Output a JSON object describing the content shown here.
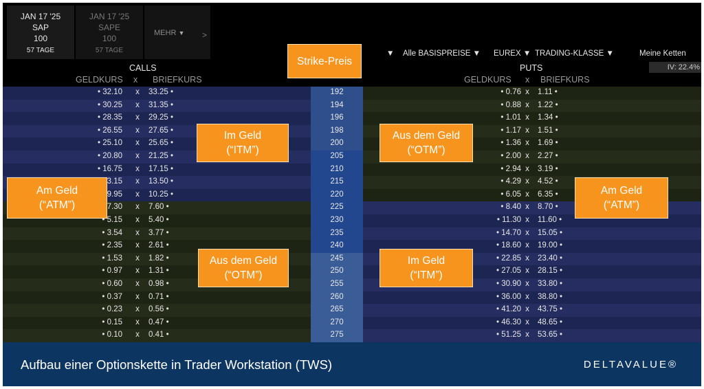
{
  "tabs": [
    {
      "date": "JAN 17 '25",
      "symbol": "SAP",
      "multiplier": "100",
      "days": "57 TAGE"
    },
    {
      "date": "JAN 17 '25",
      "symbol": "SAPE",
      "multiplier": "100",
      "days": "57 TAGE"
    }
  ],
  "more_label": "MEHR",
  "toolbar": {
    "underlyings": "Alle BASISPREISE",
    "exchange": "EUREX",
    "trading_class": "TRADING-KLASSE",
    "my_chains": "Meine Ketten",
    "iv": "IV: 22.4%"
  },
  "calls_label": "CALLS",
  "puts_label": "PUTS",
  "bid_label": "GELDKURS",
  "x_label": "x",
  "ask_label": "BRIEFKURS",
  "strike_label": "Strike-Preis",
  "rows": [
    {
      "c_bid": "32.10",
      "c_ask": "33.25",
      "strike": "192",
      "p_bid": "0.76",
      "p_ask": "1.11"
    },
    {
      "c_bid": "30.25",
      "c_ask": "31.35",
      "strike": "194",
      "p_bid": "0.88",
      "p_ask": "1.22"
    },
    {
      "c_bid": "28.35",
      "c_ask": "29.25",
      "strike": "196",
      "p_bid": "1.01",
      "p_ask": "1.34"
    },
    {
      "c_bid": "26.55",
      "c_ask": "27.65",
      "strike": "198",
      "p_bid": "1.17",
      "p_ask": "1.51"
    },
    {
      "c_bid": "25.10",
      "c_ask": "25.65",
      "strike": "200",
      "p_bid": "1.36",
      "p_ask": "1.69"
    },
    {
      "c_bid": "20.80",
      "c_ask": "21.25",
      "strike": "205",
      "p_bid": "2.00",
      "p_ask": "2.27"
    },
    {
      "c_bid": "16.75",
      "c_ask": "17.15",
      "strike": "210",
      "p_bid": "2.94",
      "p_ask": "3.19"
    },
    {
      "c_bid": "13.15",
      "c_ask": "13.50",
      "strike": "215",
      "p_bid": "4.29",
      "p_ask": "4.52"
    },
    {
      "c_bid": "9.95",
      "c_ask": "10.25",
      "strike": "220",
      "p_bid": "6.05",
      "p_ask": "6.35"
    },
    {
      "c_bid": "7.30",
      "c_ask": "7.60",
      "strike": "225",
      "p_bid": "8.40",
      "p_ask": "8.70"
    },
    {
      "c_bid": "5.15",
      "c_ask": "5.40",
      "strike": "230",
      "p_bid": "11.30",
      "p_ask": "11.60"
    },
    {
      "c_bid": "3.54",
      "c_ask": "3.77",
      "strike": "235",
      "p_bid": "14.70",
      "p_ask": "15.05"
    },
    {
      "c_bid": "2.35",
      "c_ask": "2.61",
      "strike": "240",
      "p_bid": "18.60",
      "p_ask": "19.00"
    },
    {
      "c_bid": "1.53",
      "c_ask": "1.82",
      "strike": "245",
      "p_bid": "22.85",
      "p_ask": "23.40"
    },
    {
      "c_bid": "0.97",
      "c_ask": "1.31",
      "strike": "250",
      "p_bid": "27.05",
      "p_ask": "28.15"
    },
    {
      "c_bid": "0.60",
      "c_ask": "0.98",
      "strike": "255",
      "p_bid": "30.90",
      "p_ask": "33.80"
    },
    {
      "c_bid": "0.37",
      "c_ask": "0.71",
      "strike": "260",
      "p_bid": "36.00",
      "p_ask": "38.80"
    },
    {
      "c_bid": "0.23",
      "c_ask": "0.56",
      "strike": "265",
      "p_bid": "41.20",
      "p_ask": "43.75"
    },
    {
      "c_bid": "0.15",
      "c_ask": "0.47",
      "strike": "270",
      "p_bid": "46.30",
      "p_ask": "48.65"
    },
    {
      "c_bid": "0.10",
      "c_ask": "0.41",
      "strike": "275",
      "p_bid": "51.25",
      "p_ask": "53.65"
    }
  ],
  "callouts": {
    "atm_left": [
      "Am Geld",
      "(“ATM”)"
    ],
    "itm_calls": [
      "Im Geld",
      "(“ITM”)"
    ],
    "otm_puts": [
      "Aus dem Geld",
      "(“OTM”)"
    ],
    "otm_calls": [
      "Aus dem Geld",
      "(“OTM”)"
    ],
    "itm_puts": [
      "Im Geld",
      "(“ITM”)"
    ],
    "atm_right": [
      "Am Geld",
      "(“ATM”)"
    ]
  },
  "footer": {
    "title": "Aufbau einer Optionskette in Trader Workstation (TWS)",
    "logo": "DELTAVALUE®"
  },
  "colors": {
    "itm_bg_a": "#1d2552",
    "itm_bg_b": "#262e61",
    "otm_bg_a": "#1e2413",
    "otm_bg_b": "#262c1a",
    "strike_itm_call": "#2f4f8c",
    "strike_atm": "#22478f",
    "strike_otm_call": "#3a5c97",
    "callout": "#f7941d",
    "footer": "#0d3561"
  }
}
